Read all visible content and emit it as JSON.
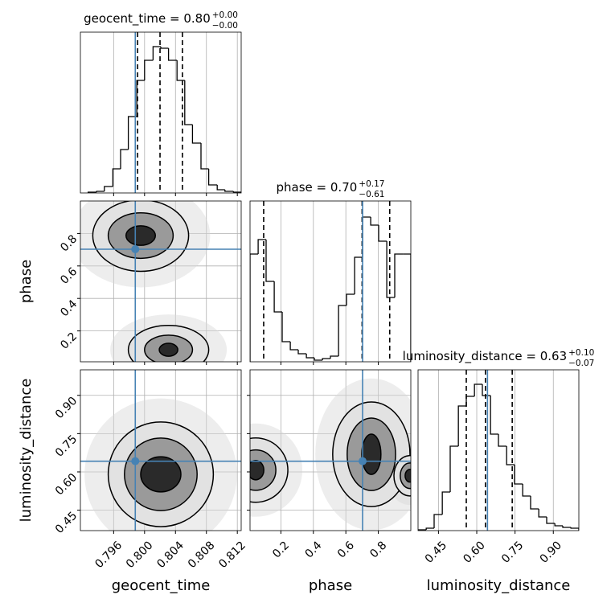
{
  "chart_data": {
    "type": "corner",
    "truth_color": "#4682b4",
    "grid": true,
    "parameters": [
      {
        "name": "geocent_time",
        "title": "geocent_time = 0.80",
        "title_upper": "+0.00",
        "title_lower": "−0.00",
        "lim": [
          0.7917,
          0.8125
        ],
        "ticks": [
          0.796,
          {
            "value": 0.8,
            "label": "0.800"
          },
          0.804,
          0.808,
          0.812
        ],
        "truth": 0.7988,
        "quantiles": [
          0.7991,
          0.802,
          0.8049
        ],
        "hist_ylim": [
          0,
          200
        ],
        "bins": [
          0.7927,
          0.7938,
          0.7948,
          0.7959,
          0.7969,
          0.7979,
          0.799,
          0.8,
          0.8011,
          0.8021,
          0.8031,
          0.8042,
          0.8052,
          0.8062,
          0.8073,
          0.8083,
          0.8094,
          0.8104,
          0.8115,
          0.8125
        ],
        "counts": [
          1,
          2,
          8,
          30,
          54,
          95,
          140,
          165,
          182,
          180,
          165,
          140,
          85,
          62,
          30,
          10,
          4,
          2,
          1
        ]
      },
      {
        "name": "phase",
        "title": "phase = 0.70",
        "title_upper": "+0.17",
        "title_lower": "−0.61",
        "lim": [
          0.01,
          1.0
        ],
        "ticks": [
          0.2,
          0.4,
          0.6,
          0.8
        ],
        "truth": 0.703,
        "quantiles": [
          0.094,
          0.7,
          0.87
        ],
        "hist_ylim": [
          0,
          200
        ],
        "bins": [
          0.01,
          0.06,
          0.109,
          0.159,
          0.208,
          0.258,
          0.307,
          0.357,
          0.406,
          0.456,
          0.505,
          0.555,
          0.604,
          0.654,
          0.703,
          0.753,
          0.802,
          0.852,
          0.901,
          0.951,
          1.0
        ],
        "counts": [
          134,
          152,
          100,
          62,
          25,
          15,
          10,
          5,
          2,
          4,
          7,
          70,
          84,
          130,
          180,
          170,
          150,
          80,
          134,
          134
        ]
      },
      {
        "name": "luminosity_distance",
        "title": "luminosity_distance = 0.63",
        "title_upper": "+0.10",
        "title_lower": "−0.07",
        "lim": [
          0.37,
          1.0
        ],
        "ticks": [
          0.45,
          {
            "value": 0.6,
            "label": "0.60"
          },
          0.75,
          {
            "value": 0.9,
            "label": "0.90"
          }
        ],
        "truth": 0.642,
        "quantiles": [
          0.559,
          0.634,
          0.739
        ],
        "hist_ylim": [
          0,
          200
        ],
        "bins": [
          0.37,
          0.402,
          0.433,
          0.465,
          0.496,
          0.528,
          0.559,
          0.591,
          0.622,
          0.654,
          0.685,
          0.717,
          0.748,
          0.78,
          0.811,
          0.843,
          0.874,
          0.906,
          0.937,
          0.969,
          1.0
        ],
        "counts": [
          1,
          3,
          20,
          48,
          105,
          155,
          167,
          182,
          168,
          120,
          105,
          82,
          58,
          43,
          27,
          17,
          9,
          6,
          4,
          3
        ]
      }
    ],
    "pairs": [
      {
        "x": 0,
        "y": 1,
        "blobs": [
          {
            "cx": 0.7995,
            "cy": 0.787,
            "rx": [
              0.0062,
              0.0042,
              0.0019
            ],
            "ry": [
              0.22,
              0.14,
              0.06
            ]
          },
          {
            "cx": 0.8031,
            "cy": 0.084,
            "rx": [
              0.0052,
              0.0031,
              0.0012
            ],
            "ry": [
              0.15,
              0.09,
              0.04
            ]
          }
        ]
      },
      {
        "x": 0,
        "y": 2,
        "blobs": [
          {
            "cx": 0.8021,
            "cy": 0.5905,
            "rx": [
              0.0068,
              0.0047,
              0.0026
            ],
            "ry": [
              0.205,
              0.142,
              0.069
            ]
          }
        ]
      },
      {
        "x": 1,
        "y": 2,
        "blobs": [
          {
            "cx": 0.757,
            "cy": 0.669,
            "rx": [
              0.238,
              0.149,
              0.059
            ],
            "ry": [
              0.205,
              0.142,
              0.079
            ]
          },
          {
            "cx": 0.045,
            "cy": 0.607,
            "rx": [
              0.198,
              0.124,
              0.05
            ],
            "ry": [
              0.126,
              0.079,
              0.038
            ]
          },
          {
            "cx": 0.995,
            "cy": 0.585,
            "rx": [
              0.099,
              0.06,
              0.03
            ],
            "ry": [
              0.079,
              0.05,
              0.025
            ]
          }
        ]
      }
    ]
  }
}
